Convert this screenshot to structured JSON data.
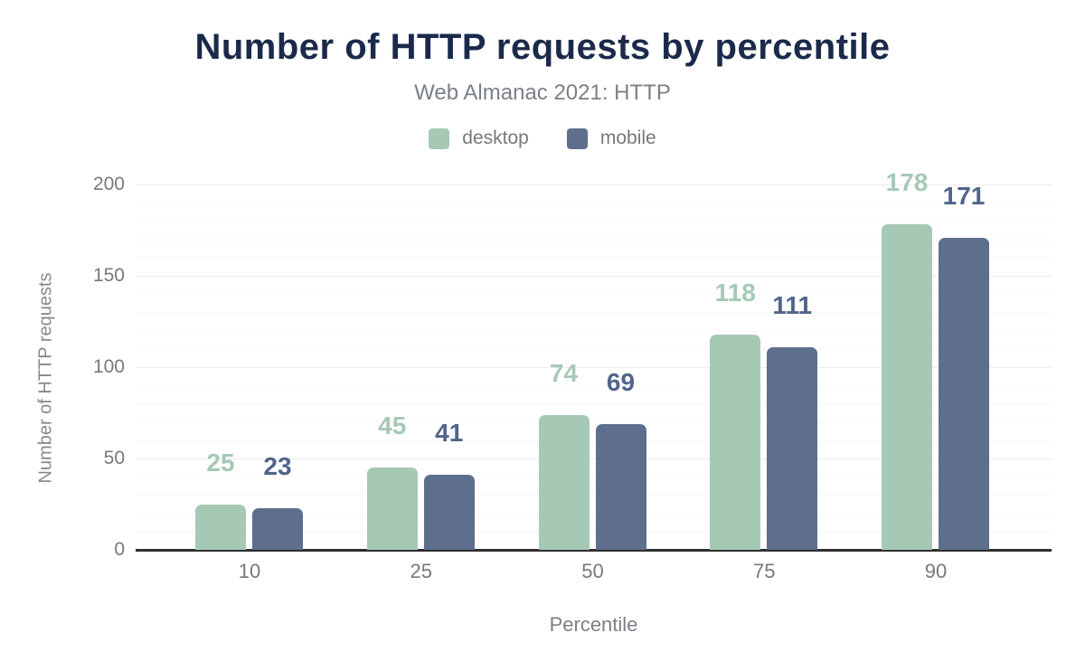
{
  "figure": {
    "title": "Number of HTTP requests by percentile",
    "subtitle": "Web Almanac 2021: HTTP"
  },
  "legend": [
    {
      "label": "desktop",
      "color": "#a6c9b6"
    },
    {
      "label": "mobile",
      "color": "#5e6f8d"
    }
  ],
  "chart_data": {
    "type": "bar",
    "title": "Number of HTTP requests by percentile",
    "subtitle": "Web Almanac 2021: HTTP",
    "categories": [
      "10",
      "25",
      "50",
      "75",
      "90"
    ],
    "series": [
      {
        "name": "desktop",
        "color": "#a6c9b6",
        "label_color": "#a6c9b6",
        "values": [
          25,
          45,
          74,
          118,
          178
        ]
      },
      {
        "name": "mobile",
        "color": "#5e6f8d",
        "label_color": "#51658a",
        "values": [
          23,
          41,
          69,
          111,
          171
        ]
      }
    ],
    "xlabel": "Percentile",
    "ylabel": "Number of HTTP requests",
    "ylim": [
      0,
      200
    ],
    "yticks": [
      0,
      50,
      100,
      150,
      200
    ],
    "minor_grid_step": 10,
    "major_grid_step": 50,
    "grid": true,
    "legend_position": "top",
    "colors": {
      "title": "#1b2a4a",
      "axis_text": "#75797e",
      "baseline": "#2f2f2f",
      "major_grid": "#ececec",
      "minor_grid": "#f7f7f8"
    }
  }
}
